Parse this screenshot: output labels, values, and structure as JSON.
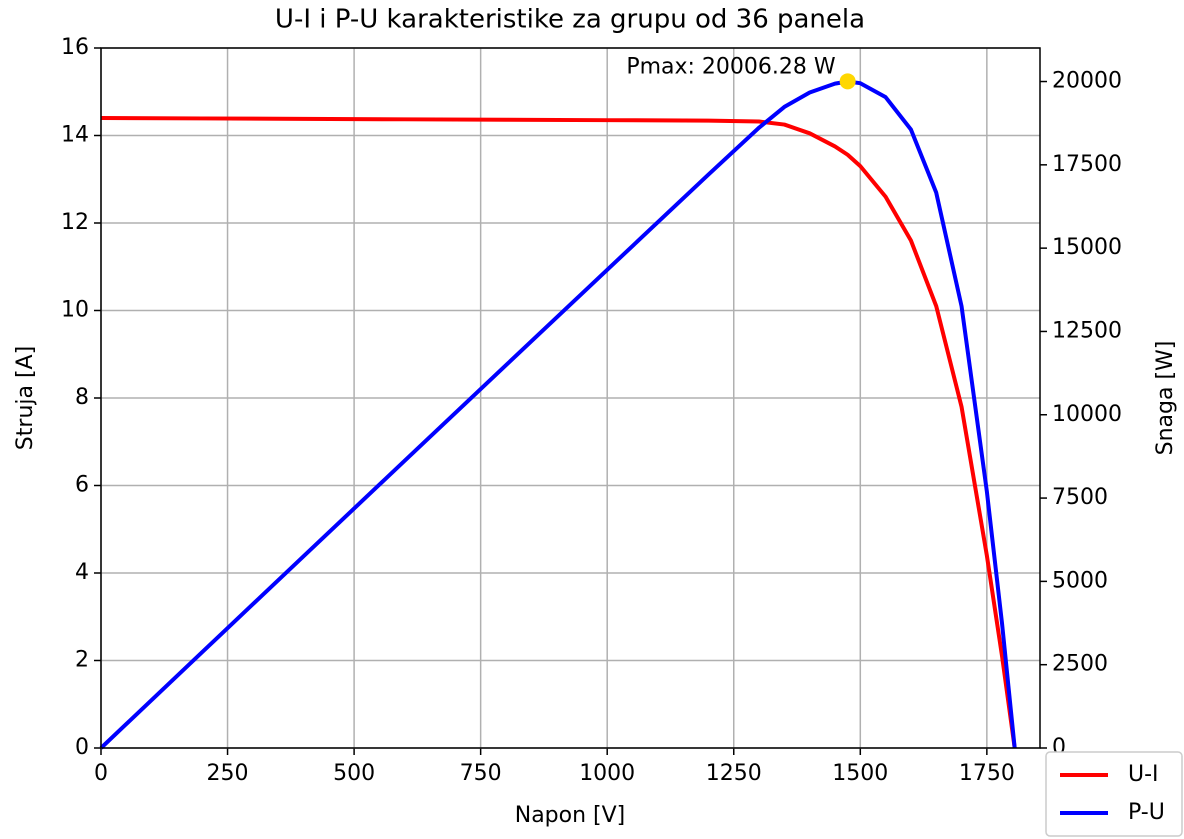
{
  "chart_data": {
    "type": "line",
    "title": "U-I i P-U karakteristike za grupu od 36 panela",
    "xlabel": "Napon [V]",
    "ylabel": "Struja [A]",
    "y2label": "Snaga [W]",
    "x": [
      0,
      200,
      400,
      600,
      800,
      1000,
      1200,
      1300,
      1350,
      1400,
      1450,
      1475,
      1500,
      1550,
      1600,
      1650,
      1700,
      1750,
      1780,
      1805
    ],
    "series": [
      {
        "name": "U-I",
        "color": "#ff0000",
        "axis": "y",
        "values": [
          14.4,
          14.39,
          14.38,
          14.37,
          14.36,
          14.35,
          14.34,
          14.32,
          14.25,
          14.05,
          13.75,
          13.56,
          13.3,
          12.6,
          11.6,
          10.1,
          7.8,
          4.4,
          2.1,
          0
        ]
      },
      {
        "name": "P-U",
        "color": "#0000ff",
        "axis": "y2",
        "values": [
          0,
          2878,
          5752,
          8622,
          11488,
          14350,
          17208,
          18616,
          19238,
          19670,
          19938,
          20001,
          19950,
          19530,
          18560,
          16665,
          13260,
          7700,
          3738,
          0
        ]
      }
    ],
    "annotation": {
      "text": "Pmax: 20006.28 W",
      "x": 1475,
      "y": 20006.28,
      "color": "#ffd700"
    },
    "xlim": [
      0,
      1855
    ],
    "xticks": [
      0,
      250,
      500,
      750,
      1000,
      1250,
      1500,
      1750
    ],
    "ylim": [
      0,
      16
    ],
    "yticks": [
      0,
      2,
      4,
      6,
      8,
      10,
      12,
      14,
      16
    ],
    "y2lim": [
      0,
      21006
    ],
    "y2ticks": [
      0,
      2500,
      5000,
      7500,
      10000,
      12500,
      15000,
      17500,
      20000
    ],
    "grid": true,
    "legend": "lower right"
  }
}
